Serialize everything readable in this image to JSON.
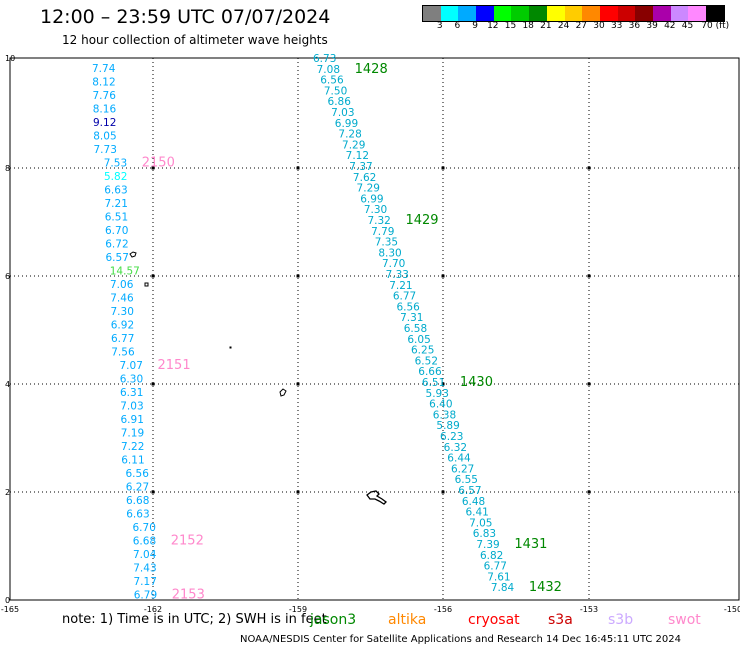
{
  "header": {
    "title": "12:00 – 23:59 UTC 07/07/2024",
    "subtitle": "12 hour collection of altimeter wave heights"
  },
  "legend": {
    "colors": [
      "#7f7f7f",
      "#00ffff",
      "#00aaff",
      "#0000ff",
      "#00ff00",
      "#00cc00",
      "#008800",
      "#ffff00",
      "#ffcc00",
      "#ff8800",
      "#ff0000",
      "#cc0000",
      "#880000",
      "#aa00aa",
      "#cc88ff",
      "#ff88ff",
      "#000000"
    ],
    "labels": [
      "3",
      "6",
      "9",
      "12",
      "15",
      "18",
      "21",
      "24",
      "27",
      "30",
      "33",
      "36",
      "39",
      "42",
      "45",
      "70 (ft)"
    ]
  },
  "axes": {
    "x_labels": [
      "-165",
      "-162",
      "-159",
      "-156",
      "-153",
      "-150"
    ],
    "y_labels": [
      "0",
      "2",
      "4",
      "6",
      "8",
      "10"
    ]
  },
  "tracks": [
    {
      "values": [
        "7.74",
        "8.12",
        "7.76",
        "8.16",
        "9.12",
        "8.05",
        "7.73",
        "7.53",
        "5.82",
        "6.63",
        "7.21",
        "6.51",
        "6.70",
        "6.72",
        "6.57",
        "14.57",
        "7.06",
        "7.46",
        "7.30",
        "6.92",
        "6.77",
        "7.56",
        "7.07",
        "6.30",
        "6.31",
        "7.03",
        "6.91",
        "7.19",
        "7.22",
        "6.11",
        "6.56",
        "6.27",
        "6.68",
        "6.63",
        "6.70",
        "6.68",
        "7.04",
        "7.43",
        "7.17",
        "6.79"
      ],
      "colors": [
        "#00aaff",
        "#00aaff",
        "#00aaff",
        "#00aaff",
        "#0000aa",
        "#00aaff",
        "#00aaff",
        "#00aaff",
        "#00ffff",
        "#00aaff",
        "#00aaff",
        "#00aaff",
        "#00aaff",
        "#00aaff",
        "#00aaff",
        "#44dd44",
        "#00aaff",
        "#00aaff",
        "#00aaff",
        "#00aaff",
        "#00aaff",
        "#00aaff",
        "#00aaff",
        "#00aaff",
        "#00aaff",
        "#00aaff",
        "#00aaff",
        "#00aaff",
        "#00aaff",
        "#00aaff",
        "#00aaff",
        "#00aaff",
        "#00aaff",
        "#00aaff",
        "#00aaff",
        "#00aaff",
        "#00aaff",
        "#00aaff",
        "#00aaff",
        "#00aaff"
      ],
      "labels": [
        {
          "text": "2150",
          "color": "#ff88cc",
          "after_index": 7
        },
        {
          "text": "2151",
          "color": "#ff88cc",
          "after_index": 22
        },
        {
          "text": "2152",
          "color": "#ff88cc",
          "after_index": 35
        },
        {
          "text": "2153",
          "color": "#ff88cc",
          "after_index": 39
        }
      ]
    },
    {
      "values": [
        "6.73",
        "7.08",
        "6.56",
        "7.50",
        "6.86",
        "7.03",
        "6.99",
        "7.28",
        "7.29",
        "7.12",
        "7.37",
        "7.62",
        "7.29",
        "6.99",
        "7.30",
        "7.32",
        "7.79",
        "7.35",
        "8.30",
        "7.70",
        "7.33",
        "7.21",
        "6.77",
        "6.56",
        "7.31",
        "6.58",
        "6.05",
        "6.25",
        "6.52",
        "6.66",
        "6.51",
        "5.93",
        "6.40",
        "6.38",
        "5.89",
        "6.23",
        "6.32",
        "6.44",
        "6.27",
        "6.55",
        "6.57",
        "6.48",
        "6.41",
        "7.05",
        "6.83",
        "7.39",
        "6.82",
        "6.77",
        "7.61",
        "7.84"
      ],
      "labels": [
        {
          "text": "1428",
          "color": "#008800",
          "after_index": 1
        },
        {
          "text": "1429",
          "color": "#008800",
          "after_index": 15
        },
        {
          "text": "1430",
          "color": "#008800",
          "after_index": 30
        },
        {
          "text": "1431",
          "color": "#008800",
          "after_index": 45
        },
        {
          "text": "1432",
          "color": "#008800",
          "after_index": 49
        }
      ]
    }
  ],
  "note": {
    "text": "note: 1) Time is in UTC; 2) SWH is in feet"
  },
  "satellites": [
    {
      "name": "jason3",
      "color": "#008800"
    },
    {
      "name": "altika",
      "color": "#ff8800"
    },
    {
      "name": "cryosat",
      "color": "#ff0000"
    },
    {
      "name": "s3a",
      "color": "#cc0000"
    },
    {
      "name": "s3b",
      "color": "#ccaaff"
    },
    {
      "name": "swot",
      "color": "#ff88cc"
    }
  ],
  "footer": {
    "text": "NOAA/NESDIS Center for Satellite Applications and Research    14 Dec 16:45:11 UTC 2024"
  }
}
